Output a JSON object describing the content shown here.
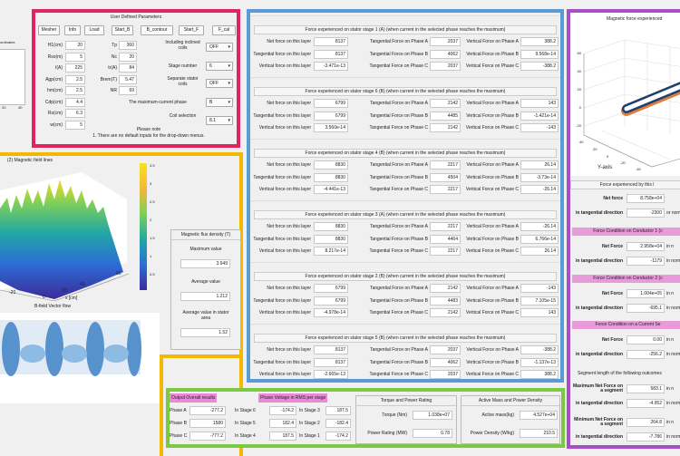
{
  "colors": {
    "pink": "#e0245e",
    "yellow": "#f5b800",
    "blue": "#5b9bd5",
    "purple": "#a64fc7",
    "green": "#7ac943"
  },
  "top_left_plot": {
    "title": "ordinates",
    "ticks": [
      "20",
      "40"
    ]
  },
  "params": {
    "title": "User Defined Parameters",
    "buttons": [
      "Mesher",
      "Info",
      "Load",
      "Start_B",
      "B_contour",
      "Start_F",
      "F_cal"
    ],
    "left": [
      {
        "label": "H1(cm)",
        "value": "20"
      },
      {
        "label": "Rso(m)",
        "value": "5"
      },
      {
        "label": "I(A)",
        "value": "225"
      },
      {
        "label": "Agp(cm)",
        "value": "2.5"
      },
      {
        "label": "hm(cm)",
        "value": "2.5"
      },
      {
        "label": "Cdp(cm)",
        "value": "4.4"
      },
      {
        "label": "Rs(cm)",
        "value": "6.3"
      },
      {
        "label": "w(cm)",
        "value": "5"
      }
    ],
    "mid": [
      {
        "label": "Tp",
        "value": "360"
      },
      {
        "label": "Nc",
        "value": "20"
      },
      {
        "label": "tr(A)",
        "value": "84"
      },
      {
        "label": "Brem(T)",
        "value": "5.47"
      },
      {
        "label": "NR",
        "value": "69"
      }
    ],
    "right": [
      {
        "label": "Including inclined coils",
        "value": "OFF"
      },
      {
        "label": "Stage number",
        "value": "6"
      },
      {
        "label": "Separate stator coils",
        "value": "OFF"
      },
      {
        "label": "The maximum-current phase",
        "value": "B"
      },
      {
        "label": "Coil selection",
        "value": "8.1"
      }
    ],
    "note_title": "Please note",
    "note_1": "1. There are no default inputs for the drop-down menus."
  },
  "field": {
    "title": "(2) Magnetic field lines",
    "colorbar_ticks": [
      "3.5",
      "3",
      "2.5",
      "2",
      "1.5",
      "1",
      "0.5"
    ],
    "x_ticks": [
      "-20",
      "0",
      "20",
      "40",
      "60"
    ],
    "xlabel": "x [cm]",
    "vector_title": "B-field Vector flow",
    "flux": {
      "title": "Magnetic flux density (T)",
      "max_label": "Maximum value",
      "max": "3.649",
      "avg_label": "Average value",
      "avg": "1.212",
      "stator_label": "Average value in stator area",
      "stator": "1.52"
    }
  },
  "stages": {
    "row_labels": [
      "Net force on this layer",
      "Tangential force on this layer",
      "Vertical force on this layer"
    ],
    "tan_labels": [
      "Tangential Force on Phase A",
      "Tangential Force on Phase B",
      "Tangential Force on Phase C"
    ],
    "vert_labels": [
      "Vertical Force on Phase A",
      "Vertical Force on Phase B",
      "Vertical Force on Phase C"
    ],
    "sections": [
      {
        "title": "Force experienced on stator stage 1 (A) (when current in the selected phase reaches the maximum)",
        "layer": [
          "8137",
          "8137",
          "-3.471e-13"
        ],
        "tan": [
          "2037",
          "4062",
          "2037"
        ],
        "vert": [
          "388.2",
          "9.568e-14",
          "-388.2"
        ]
      },
      {
        "title": "Force experienced on stator stage 6 (B) (when current in the selected phase reaches the maximum)",
        "layer": [
          "6799",
          "6799",
          "3.560e-14"
        ],
        "tan": [
          "2142",
          "4485",
          "2142"
        ],
        "vert": [
          "143",
          "-1.421e-14",
          "-143"
        ]
      },
      {
        "title": "Force experienced on stator stage 4 (B) (when current in the selected phase reaches the maximum)",
        "layer": [
          "8830",
          "8830",
          "-4.441e-13"
        ],
        "tan": [
          "2217",
          "4504",
          "2217"
        ],
        "vert": [
          "26.14",
          "-3.73e-14",
          "-26.14"
        ]
      },
      {
        "title": "Force experienced on stator stage 3 (A) (when current in the selected phase reaches the maximum)",
        "layer": [
          "8830",
          "8830",
          "8.217e-14"
        ],
        "tan": [
          "2217",
          "4464",
          "2217"
        ],
        "vert": [
          "-26.14",
          "6.766e-14",
          "26.14"
        ]
      },
      {
        "title": "Force experienced on stator stage 2 (B) (when current in the selected phase reaches the maximum)",
        "layer": [
          "6799",
          "6799",
          "-4.978e-14"
        ],
        "tan": [
          "2142",
          "4483",
          "2142"
        ],
        "vert": [
          "-143",
          "7.105e-15",
          "143"
        ]
      },
      {
        "title": "Force experienced on stator stage 5 (B) (when current in the selected phase reaches the maximum)",
        "layer": [
          "8137",
          "8137",
          "-2.665e-13"
        ],
        "tan": [
          "2037",
          "4062",
          "2037"
        ],
        "vert": [
          "-388.2",
          "-1.137e-13",
          "388.2"
        ]
      }
    ]
  },
  "force3d": {
    "title": "Magnetic force experienced",
    "z_ticks": [
      "60",
      "40",
      "20",
      "0",
      "-20"
    ],
    "y_ticks": [
      "40",
      "20",
      "0",
      "-20",
      "-40"
    ],
    "ylabel": "Y-axis"
  },
  "right_panel": {
    "layer_title": "Force experienced by this l",
    "net_label": "Net force",
    "net": "8.758e+04",
    "tan_label": "in tangential direction",
    "tan": "-2300",
    "normal_label": "or norm",
    "cond1_title": "Force Condition on Conductor 1 (c",
    "cond1": {
      "net_label": "Net Force",
      "net": "2.958e+04",
      "tan_label": "in tangential direction",
      "tan": "-1179",
      "n1": "in n",
      "n2": "in norm"
    },
    "cond2_title": "Force Condition on Conductor 2 (c",
    "cond2": {
      "net_label": "Net Force",
      "net": "1.004e+05",
      "tan_label": "in tangential direction",
      "tan": "-695.1",
      "n1": "in n",
      "n2": "in norm"
    },
    "seg_title": "Force Condition on a Current Se",
    "seg": {
      "net_label": "Net Force",
      "net": "0.00",
      "tan_label": "in tangential direction",
      "tan": "-256.2",
      "n1": "in n",
      "n2": "in norm"
    },
    "seg_len": "Segment length of the following outcomes",
    "max": {
      "label": "Maximum Net Force on a segment",
      "value": "583.1",
      "tan_label": "in tangential direction",
      "tan": "-4.952",
      "n1": "in n",
      "n2": "in norm"
    },
    "min": {
      "label": "Minimum Net Force on a segment",
      "value": "264.8",
      "tan_label": "in tangential direction",
      "tan": "-7.786",
      "n1": "in n",
      "n2": "in norm"
    }
  },
  "output": {
    "overall_title": "Output Overall results",
    "phases": [
      {
        "label": "Phase A",
        "value": "-277.2"
      },
      {
        "label": "Phase B",
        "value": "1580"
      },
      {
        "label": "Phase C",
        "value": "-777.2"
      }
    ],
    "voltage_title": "Phase Voltage in RMS per stage",
    "volt_col1": [
      {
        "label": "In Stage 6",
        "value": "-174.2"
      },
      {
        "label": "In Stage 5",
        "value": "182.4"
      },
      {
        "label": "In Stage 4",
        "value": "187.5"
      }
    ],
    "volt_col2": [
      {
        "label": "In Stage 3",
        "value": "187.5"
      },
      {
        "label": "In Stage 2",
        "value": "-182.4"
      },
      {
        "label": "In Stage 1",
        "value": "-174.2"
      }
    ],
    "torque": {
      "title": "Torque and Power Rating",
      "torque_label": "Torque (Nm)",
      "torque": "1.038e+07",
      "power_label": "Power Rating (MW)",
      "power": "0.78"
    },
    "mass": {
      "title": "Active Mass and Power Density",
      "mass_label": "Active mass(kg)",
      "mass": "4.527e+04",
      "density_label": "Power Density (W/kg)",
      "density": "210.5"
    }
  }
}
